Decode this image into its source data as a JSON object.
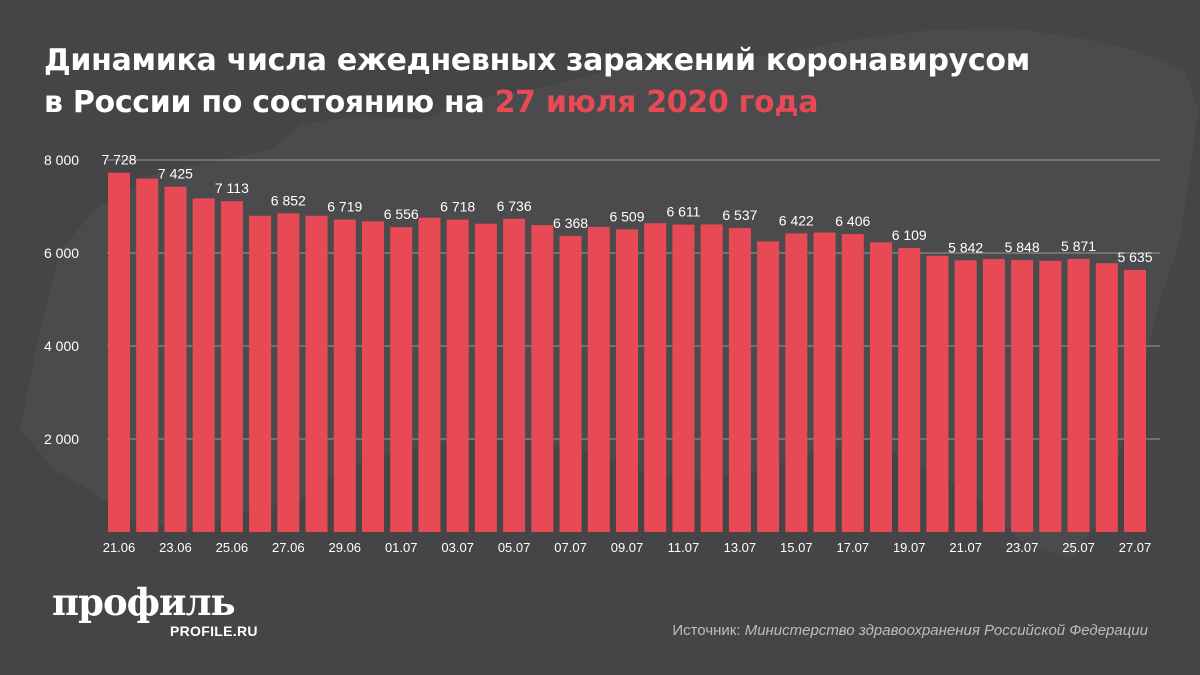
{
  "title": {
    "line1": "Динамика числа ежедневных заражений коронавирусом",
    "line2_prefix": "в России по состоянию на ",
    "line2_accent": "27 июля 2020 года"
  },
  "colors": {
    "background": "#454447",
    "bar": "#e84a55",
    "accent": "#e84a55",
    "text": "#ffffff",
    "muted": "#bdbdbd",
    "grid": "#9a999c"
  },
  "logo": {
    "name": "профиль",
    "domain": "PROFILE.RU"
  },
  "source": {
    "label": "Источник: ",
    "text": "Министерство здравоохранения Российской Федерации"
  },
  "chart_data": {
    "type": "bar",
    "title": "Динамика числа ежедневных заражений коронавирусом в России по состоянию на 27 июля 2020 года",
    "xlabel": "",
    "ylabel": "",
    "ylim": [
      0,
      8000
    ],
    "yticks": [
      2000,
      4000,
      6000,
      8000
    ],
    "ytick_labels": [
      "2 000",
      "4 000",
      "6 000",
      "8 000"
    ],
    "grid": "horizontal",
    "legend": "none",
    "categories": [
      "21.06",
      "22.06",
      "23.06",
      "24.06",
      "25.06",
      "26.06",
      "27.06",
      "28.06",
      "29.06",
      "30.06",
      "01.07",
      "02.07",
      "03.07",
      "04.07",
      "05.07",
      "06.07",
      "07.07",
      "08.07",
      "09.07",
      "10.07",
      "11.07",
      "12.07",
      "13.07",
      "14.07",
      "15.07",
      "16.07",
      "17.07",
      "18.07",
      "19.07",
      "20.07",
      "21.07",
      "22.07",
      "23.07",
      "24.07",
      "25.07",
      "26.07",
      "27.07"
    ],
    "category_labels_shown": [
      "21.06",
      "",
      "23.06",
      "",
      "25.06",
      "",
      "27.06",
      "",
      "29.06",
      "",
      "01.07",
      "",
      "03.07",
      "",
      "05.07",
      "",
      "07.07",
      "",
      "09.07",
      "",
      "11.07",
      "",
      "13.07",
      "",
      "15.07",
      "",
      "17.07",
      "",
      "19.07",
      "",
      "21.07",
      "",
      "23.07",
      "",
      "25.07",
      "",
      "27.07"
    ],
    "values": [
      7728,
      7600,
      7425,
      7176,
      7113,
      6800,
      6852,
      6800,
      6719,
      6680,
      6556,
      6760,
      6718,
      6630,
      6736,
      6600,
      6368,
      6560,
      6509,
      6640,
      6611,
      6615,
      6537,
      6250,
      6422,
      6440,
      6406,
      6230,
      6109,
      5940,
      5842,
      5870,
      5848,
      5830,
      5871,
      5780,
      5635
    ],
    "data_labels": [
      "7 728",
      "",
      "7 425",
      "",
      "7 113",
      "",
      "6 852",
      "",
      "6 719",
      "",
      "6 556",
      "",
      "6 718",
      "",
      "6 736",
      "",
      "6 368",
      "",
      "6 509",
      "",
      "6 611",
      "",
      "6 537",
      "",
      "6 422",
      "",
      "6 406",
      "",
      "6 109",
      "",
      "5 842",
      "",
      "5 848",
      "",
      "5 871",
      "",
      "5 635"
    ]
  }
}
